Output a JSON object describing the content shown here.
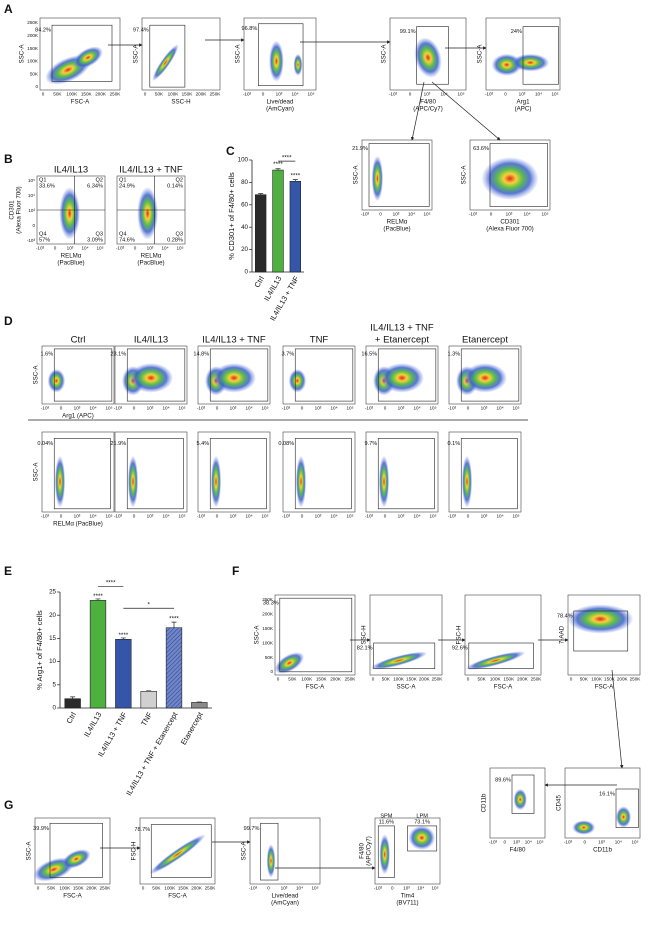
{
  "panel_letters": [
    "A",
    "B",
    "C",
    "D",
    "E",
    "F",
    "G"
  ],
  "A": {
    "plots": [
      {
        "y_label": [
          "SSC-A"
        ],
        "x_label": [
          "FSC-A"
        ],
        "gate": "84.2%",
        "x_ticks": [
          "0",
          "50K",
          "100K",
          "150K",
          "200K",
          "250K"
        ],
        "y_ticks": [
          "0",
          "50K",
          "100K",
          "150K",
          "200K",
          "250K"
        ]
      },
      {
        "y_label": [
          "SSC-A"
        ],
        "x_label": [
          "SSC-H"
        ],
        "gate": "97.4%",
        "x_ticks": [
          "0",
          "50K",
          "100K",
          "150K",
          "200K",
          "250K"
        ]
      },
      {
        "y_label": [
          "SSC-A"
        ],
        "x_label": [
          "Live/dead",
          "(AmCyan)"
        ],
        "gate": "96.8%",
        "x_ticks": [
          "-10³",
          "0",
          "10³",
          "10⁴",
          "10⁵"
        ]
      },
      {
        "y_label": [
          "SSC-A"
        ],
        "x_label": [
          "F4/80",
          "(APC/Cy7)"
        ],
        "gate": "99.1%",
        "x_ticks": [
          "-10³",
          "0",
          "10³",
          "10⁴",
          "10⁵"
        ]
      },
      {
        "y_label": [
          "SSC-A"
        ],
        "x_label": [
          "Arg1",
          "(APC)"
        ],
        "gate": "24%",
        "x_ticks": [
          "-10³",
          "0",
          "10³",
          "10⁴",
          "10⁵"
        ]
      },
      {
        "y_label": [
          "SSC-A"
        ],
        "x_label": [
          "RELMα",
          "(PacBlue)"
        ],
        "gate": "21.9%",
        "x_ticks": [
          "-10³",
          "0",
          "10³",
          "10⁴",
          "10⁵"
        ]
      },
      {
        "y_label": [
          "SSC-A"
        ],
        "x_label": [
          "CD301",
          "(Alexa Fluor 700)"
        ],
        "gate": "63.6%",
        "x_ticks": [
          "-10³",
          "0",
          "10³",
          "10⁴",
          "10⁵"
        ]
      }
    ]
  },
  "B": {
    "plots": [
      {
        "title": [
          "IL4/IL13"
        ],
        "y_label": [
          "CD301",
          "(Alexa Fluor 700)"
        ],
        "x_label": [
          "RELMα",
          "(PacBlue)"
        ],
        "x_ticks": [
          "-10³",
          "0",
          "10³",
          "10⁴",
          "10⁵"
        ],
        "y_ticks": [
          "-10³",
          "0",
          "10³",
          "10⁴",
          "10⁵"
        ],
        "quadrants": [
          {
            "name": "Q1",
            "pct": "33.6%"
          },
          {
            "name": "Q2",
            "pct": "6.34%"
          },
          {
            "name": "Q3",
            "pct": "3.09%"
          },
          {
            "name": "Q4",
            "pct": "57%"
          }
        ]
      },
      {
        "title": [
          "IL4/IL13 + TNF"
        ],
        "x_label": [
          "RELMα",
          "(PacBlue)"
        ],
        "x_ticks": [
          "-10³",
          "0",
          "10³",
          "10⁴",
          "10⁵"
        ],
        "quadrants": [
          {
            "name": "Q1",
            "pct": "24.9%"
          },
          {
            "name": "Q2",
            "pct": "0.14%"
          },
          {
            "name": "Q3",
            "pct": "0.28%"
          },
          {
            "name": "Q4",
            "pct": "74.6%"
          }
        ]
      }
    ]
  },
  "D": {
    "plots": [
      {
        "title": [
          "Ctrl"
        ],
        "y_label": [
          "SSC-A"
        ],
        "x_label": [
          "Arg1 (APC)"
        ],
        "gate": "1.6%",
        "x_ticks": [
          "-10³",
          "0",
          "10³",
          "10⁴",
          "10⁵"
        ]
      },
      {
        "title": [
          "IL4/IL13"
        ],
        "gate": "23.1%",
        "x_ticks": [
          "-10³",
          "0",
          "10³",
          "10⁴",
          "10⁵"
        ]
      },
      {
        "title": [
          "IL4/IL13 + TNF"
        ],
        "gate": "14.8%",
        "x_ticks": [
          "-10³",
          "0",
          "10³",
          "10⁴",
          "10⁵"
        ]
      },
      {
        "title": [
          "TNF"
        ],
        "gate": "3.7%",
        "x_ticks": [
          "-10³",
          "0",
          "10³",
          "10⁴",
          "10⁵"
        ]
      },
      {
        "title": [
          "IL4/IL13 + TNF",
          "+ Etanercept"
        ],
        "gate": "16.5%",
        "x_ticks": [
          "-10³",
          "0",
          "10³",
          "10⁴",
          "10⁵"
        ]
      },
      {
        "title": [
          "Etanercept"
        ],
        "gate": "1.3%",
        "x_ticks": [
          "-10³",
          "0",
          "10³",
          "10⁴",
          "10⁵"
        ]
      },
      {
        "y_label": [
          "SSC-A"
        ],
        "x_label": [
          "RELMα (PacBlue)"
        ],
        "gate": "0.04%",
        "x_ticks": [
          "-10³",
          "0",
          "10³",
          "10⁴",
          "10⁵"
        ]
      },
      {
        "gate": "21.9%",
        "x_ticks": [
          "-10³",
          "0",
          "10³",
          "10⁴",
          "10⁵"
        ]
      },
      {
        "gate": "5.4%",
        "x_ticks": [
          "-10³",
          "0",
          "10³",
          "10⁴",
          "10⁵"
        ]
      },
      {
        "gate": "0.08%",
        "x_ticks": [
          "-10³",
          "0",
          "10³",
          "10⁴",
          "10⁵"
        ]
      },
      {
        "gate": "9.7%",
        "x_ticks": [
          "-10³",
          "0",
          "10³",
          "10⁴",
          "10⁵"
        ]
      },
      {
        "gate": "0.1%",
        "x_ticks": [
          "-10³",
          "0",
          "10³",
          "10⁴",
          "10⁵"
        ]
      }
    ]
  },
  "F": {
    "plots": [
      {
        "y_label": [
          "SSC-A"
        ],
        "x_label": [
          "FSC-A"
        ],
        "gate": "38.3%",
        "x_ticks": [
          "0",
          "50K",
          "100K",
          "150K",
          "200K",
          "250K"
        ],
        "y_ticks": [
          "0",
          "50K",
          "100K",
          "150K",
          "200K",
          "250K"
        ]
      },
      {
        "y_label": [
          "SSC-H"
        ],
        "x_label": [
          "SSC-A"
        ],
        "gate": "82.1%",
        "x_ticks": [
          "0",
          "50K",
          "100K",
          "150K",
          "200K",
          "250K"
        ]
      },
      {
        "y_label": [
          "FSC-H"
        ],
        "x_label": [
          "FSC-A"
        ],
        "gate": "92.6%",
        "x_ticks": [
          "0",
          "50K",
          "100K",
          "150K",
          "200K",
          "250K"
        ]
      },
      {
        "y_label": [
          "7-AAD"
        ],
        "x_label": [
          "FSC-A"
        ],
        "gate": "78.4%",
        "x_ticks": [
          "0",
          "50K",
          "100K",
          "150K",
          "200K",
          "250K"
        ]
      },
      {
        "y_label": [
          "CD45"
        ],
        "x_label": [
          "CD11b"
        ],
        "gate": "16.1%",
        "x_ticks": [
          "-10³",
          "0",
          "10³",
          "10⁴",
          "10⁵"
        ]
      },
      {
        "y_label": [
          "CD11b"
        ],
        "x_label": [
          "F4/80"
        ],
        "gate": "89.6%",
        "x_ticks": [
          "-10³",
          "0",
          "10³",
          "10⁴",
          "10⁵"
        ]
      }
    ]
  },
  "G": {
    "plots": [
      {
        "y_label": [
          "SSC-A"
        ],
        "x_label": [
          "FSC-A"
        ],
        "gate": "39.9%",
        "x_ticks": [
          "0",
          "50K",
          "100K",
          "150K",
          "200K",
          "250K"
        ]
      },
      {
        "y_label": [
          "FSC-H"
        ],
        "x_label": [
          "FSC-A"
        ],
        "gate": "78.7%",
        "x_ticks": [
          "0",
          "50K",
          "100K",
          "150K",
          "200K",
          "250K"
        ]
      },
      {
        "y_label": [
          "SSC-A"
        ],
        "x_label": [
          "Live/dead",
          "(AmCyan)"
        ],
        "gate": "99.7%",
        "x_ticks": [
          "-10³",
          "0",
          "10³",
          "10⁴",
          "10⁵"
        ]
      },
      {
        "y_label": [
          "F4/80",
          "(APC/Cy7)"
        ],
        "x_label": [
          "Tim4",
          "(BV711)"
        ],
        "gates": [
          {
            "name": "SPM",
            "pct": "11.6%"
          },
          {
            "name": "LPM",
            "pct": "73.1%"
          }
        ],
        "x_ticks": [
          "-10³",
          "0",
          "10³",
          "10⁴",
          "10⁵"
        ]
      }
    ]
  },
  "chart_data": [
    {
      "type": "bar",
      "y_label": "% CD301+ of F4/80+ cells",
      "categories": [
        "Ctrl",
        "IL4/IL13",
        "IL4/IL13 + TNF"
      ],
      "values": [
        69,
        91,
        81
      ],
      "errors": [
        1,
        1.2,
        1.5
      ],
      "colors": [
        "#2a2a2a",
        "#4db03f",
        "#3556a8"
      ],
      "hatched": [
        false,
        false,
        false
      ],
      "ylim": [
        0,
        100
      ],
      "yticks": [
        0,
        20,
        40,
        60,
        80,
        100
      ],
      "annotations": [
        "****",
        "****",
        "****"
      ]
    },
    {
      "type": "bar",
      "y_label": "% Arg1+ of F4/80+ cells",
      "categories": [
        "Ctrl",
        "IL4/IL13",
        "IL4/IL13 + TNF",
        "TNF",
        "IL4/IL13 + TNF + Etanercept",
        "Etanercept"
      ],
      "values": [
        2,
        23.2,
        14.8,
        3.6,
        17.3,
        1.2
      ],
      "errors": [
        0.4,
        0.3,
        0.3,
        0.1,
        1.2,
        0.1
      ],
      "colors": [
        "#2a2a2a",
        "#4db03f",
        "#3556a8",
        "#d0d0d0",
        "#6f86c9",
        "#8a8a8a"
      ],
      "hatched": [
        false,
        false,
        false,
        false,
        true,
        false
      ],
      "ylim": [
        0,
        25
      ],
      "yticks": [
        0,
        5,
        10,
        15,
        20,
        25
      ],
      "annotations": [
        "****",
        "****",
        "****",
        "*",
        "****"
      ]
    }
  ]
}
